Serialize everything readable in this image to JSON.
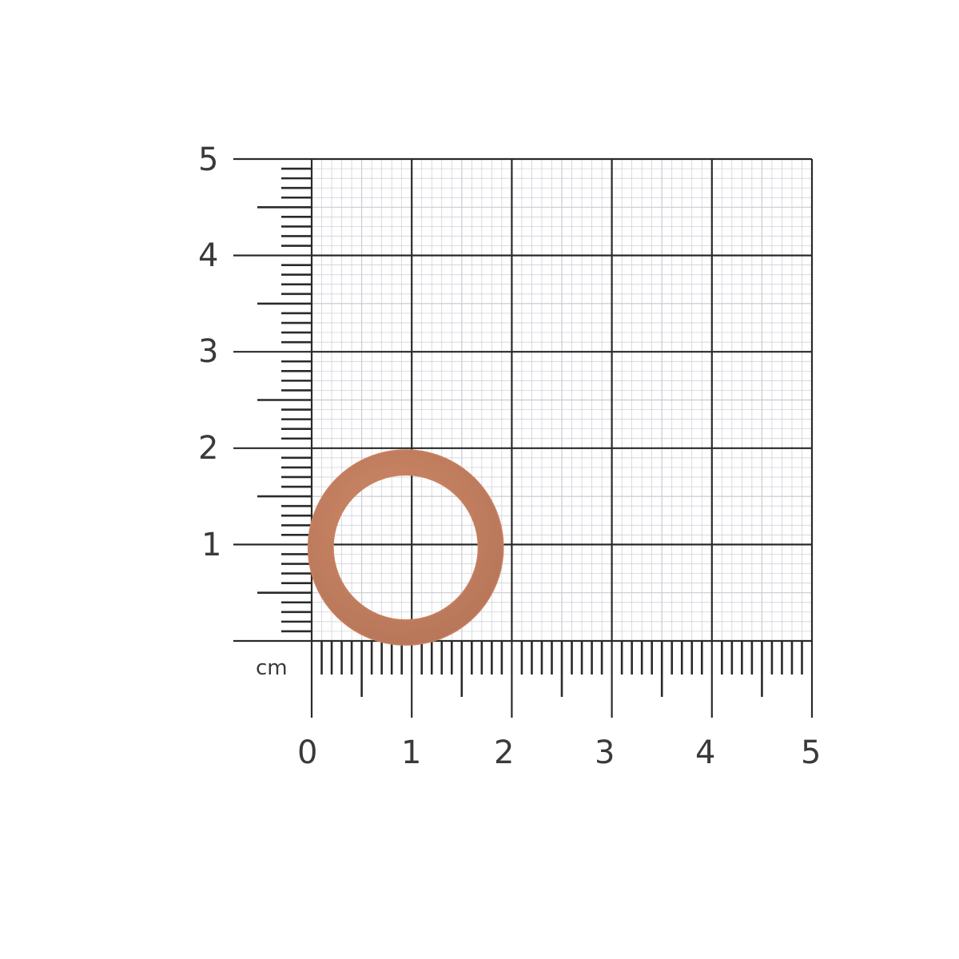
{
  "scale": {
    "unit_label": "cm",
    "x_labels": [
      "0",
      "1",
      "2",
      "3",
      "4",
      "5"
    ],
    "y_labels": [
      "1",
      "2",
      "3",
      "4",
      "5"
    ],
    "line_color": "#2a2a2a",
    "minor_grid_color": "#c9ccd2"
  },
  "object": {
    "name": "copper washer",
    "outer_diameter_cm": 1.95,
    "inner_diameter_cm": 1.45,
    "color": "#b8775a",
    "highlight_color": "#d08a68"
  }
}
